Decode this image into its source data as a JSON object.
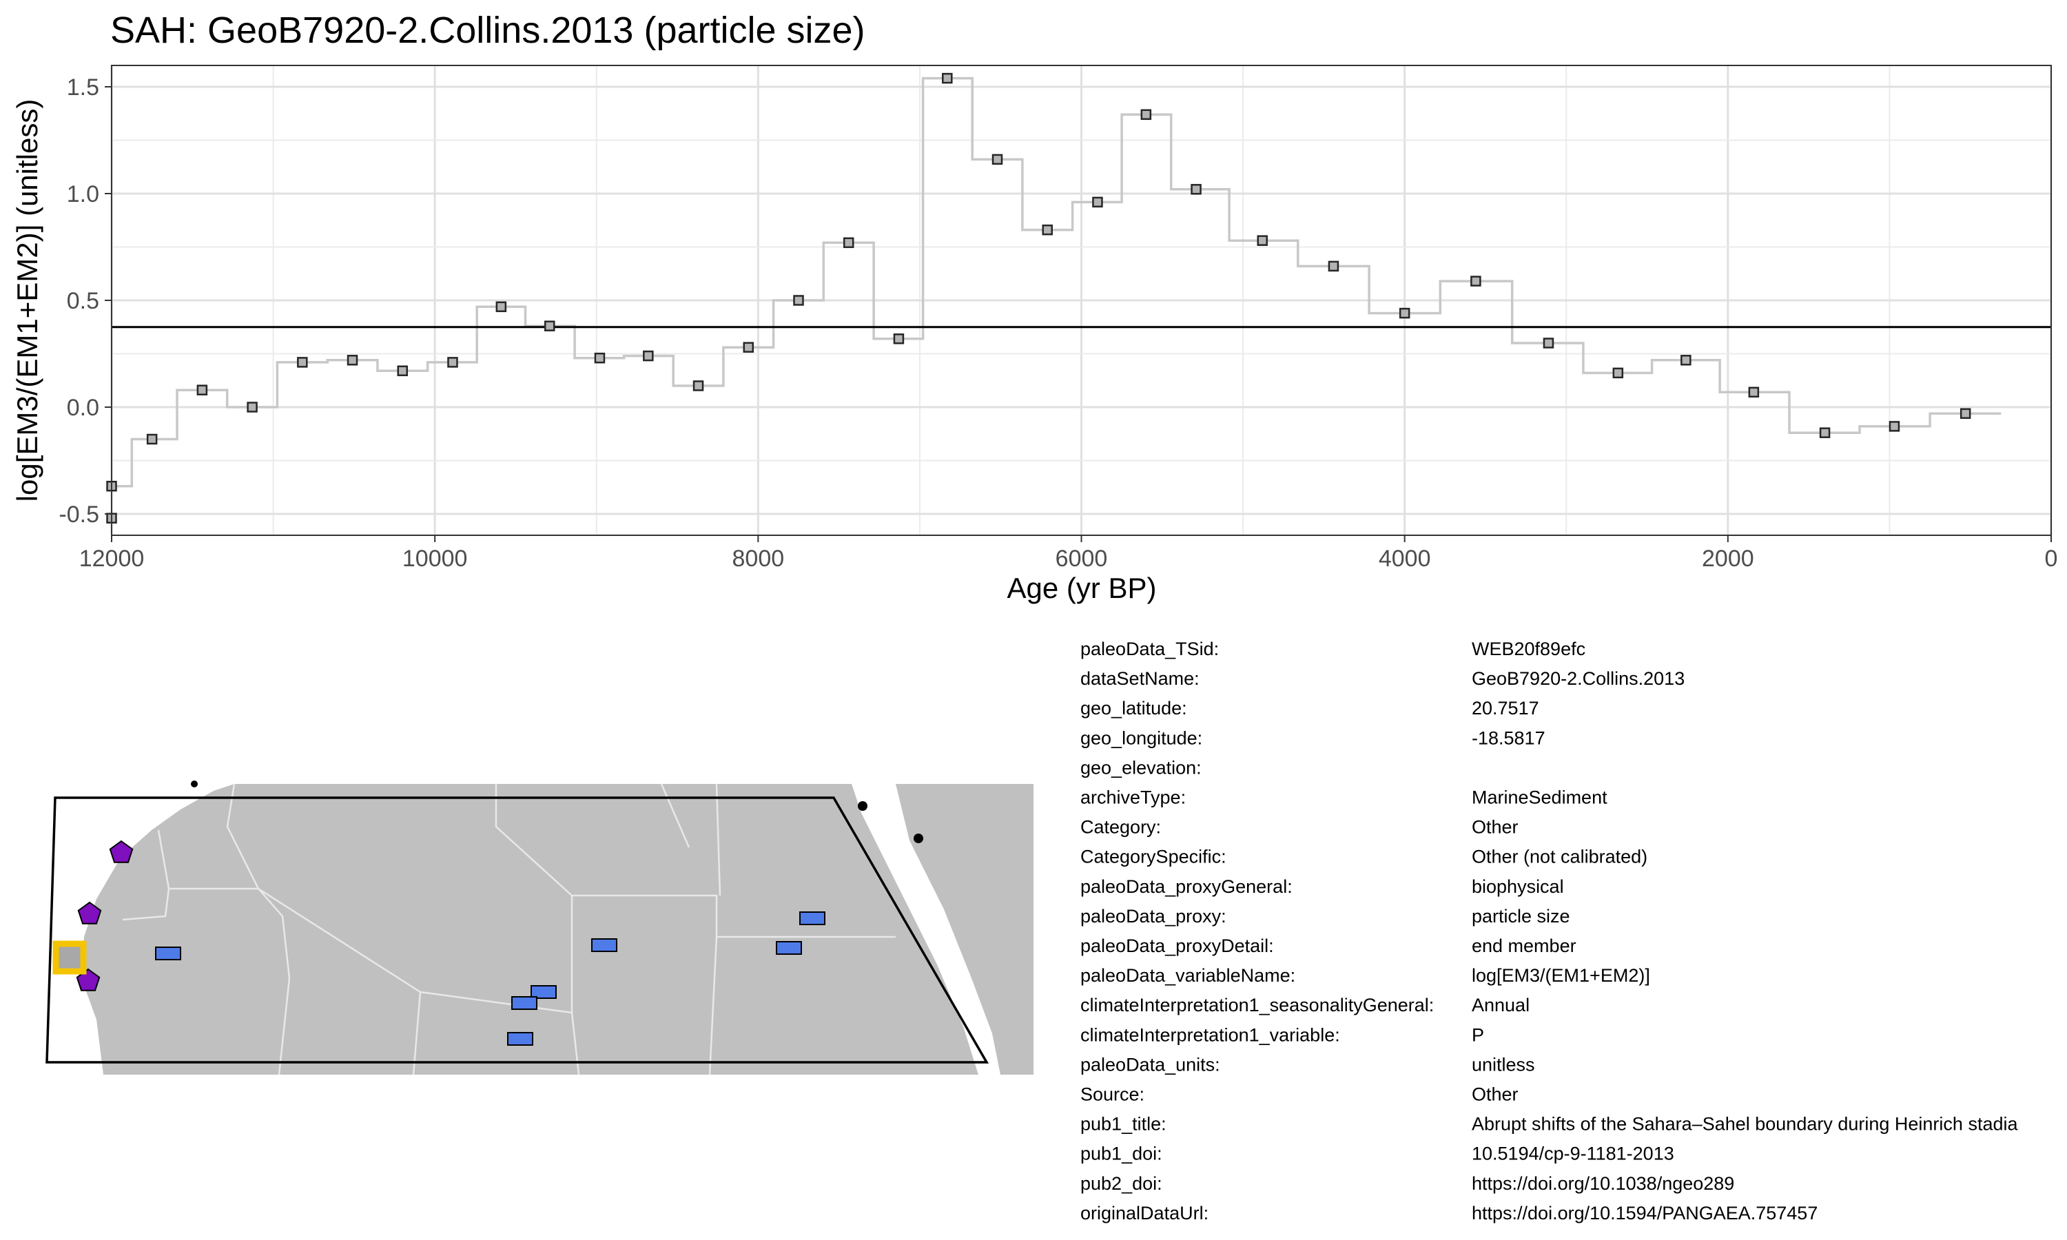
{
  "chart_data": {
    "type": "line",
    "title": "SAH: GeoB7920-2.Collins.2013 (particle size)",
    "xlabel": "Age (yr BP)",
    "ylabel": "log[EM3/(EM1+EM2)] (unitless)",
    "xlim": [
      12000,
      0
    ],
    "ylim": [
      -0.6,
      1.6
    ],
    "x_ticks": [
      "12000",
      "10000",
      "8000",
      "6000",
      "4000",
      "2000",
      "0"
    ],
    "y_ticks": [
      "-0.5",
      "0.0",
      "0.5",
      "1.0",
      "1.5"
    ],
    "x_reversed": true,
    "grid": true,
    "reference_line_y": 0.375,
    "series": [
      {
        "step": true,
        "x": [
          12000,
          11750,
          11440,
          11130,
          10820,
          10510,
          10200,
          9890,
          9590,
          9290,
          8980,
          8680,
          8370,
          8060,
          7750,
          7440,
          7130,
          6830,
          6520,
          6210,
          5900,
          5600,
          5290,
          4880,
          4440,
          4000,
          3560,
          3110,
          2680,
          2260,
          1840,
          1400,
          970,
          530
        ],
        "y": [
          -0.37,
          -0.15,
          0.08,
          0.0,
          0.21,
          0.22,
          0.17,
          0.21,
          0.47,
          0.38,
          0.23,
          0.24,
          0.1,
          0.28,
          0.5,
          0.77,
          0.32,
          1.54,
          1.16,
          0.83,
          0.96,
          1.37,
          1.02,
          0.78,
          0.66,
          0.44,
          0.59,
          0.3,
          0.16,
          0.22,
          0.07,
          -0.12,
          -0.09,
          -0.03
        ]
      }
    ]
  },
  "map": {
    "marker_color_site": "#f5c400",
    "marker_color_pentagon": "#7f0fbf",
    "marker_color_rect": "#4f7be8",
    "land_color": "#c0c0c0"
  },
  "metadata": [
    {
      "key": "paleoData_TSid:",
      "value": "WEB20f89efc"
    },
    {
      "key": "dataSetName:",
      "value": "GeoB7920-2.Collins.2013"
    },
    {
      "key": "geo_latitude:",
      "value": "20.7517"
    },
    {
      "key": "geo_longitude:",
      "value": "-18.5817"
    },
    {
      "key": "geo_elevation:",
      "value": ""
    },
    {
      "key": "archiveType:",
      "value": "MarineSediment"
    },
    {
      "key": "Category:",
      "value": "Other"
    },
    {
      "key": "CategorySpecific:",
      "value": "Other (not calibrated)"
    },
    {
      "key": "paleoData_proxyGeneral:",
      "value": "biophysical"
    },
    {
      "key": "paleoData_proxy:",
      "value": "particle size"
    },
    {
      "key": "paleoData_proxyDetail:",
      "value": "end member"
    },
    {
      "key": "paleoData_variableName:",
      "value": "log[EM3/(EM1+EM2)]"
    },
    {
      "key": "climateInterpretation1_seasonalityGeneral:",
      "value": "Annual"
    },
    {
      "key": "climateInterpretation1_variable:",
      "value": "P"
    },
    {
      "key": "paleoData_units:",
      "value": "unitless"
    },
    {
      "key": "Source:",
      "value": "Other"
    },
    {
      "key": "pub1_title:",
      "value": "Abrupt shifts of the Sahara–Sahel boundary during Heinrich stadia"
    },
    {
      "key": "pub1_doi:",
      "value": "10.5194/cp-9-1181-2013"
    },
    {
      "key": "pub2_doi:",
      "value": "https://doi.org/10.1038/ngeo289"
    },
    {
      "key": "originalDataUrl:",
      "value": "https://doi.org/10.1594/PANGAEA.757457"
    }
  ]
}
